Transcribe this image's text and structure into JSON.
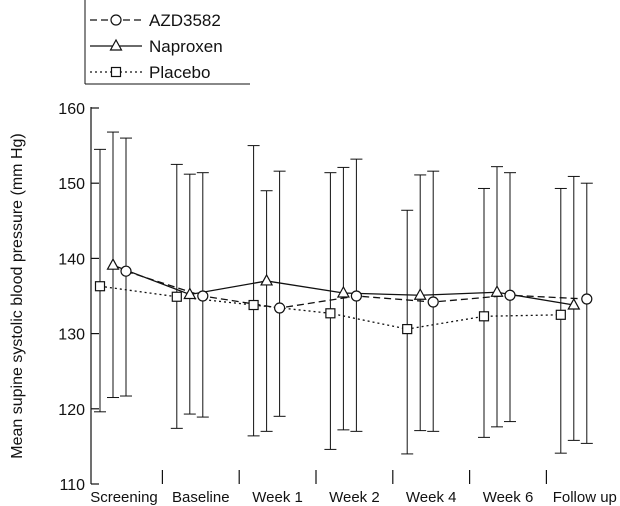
{
  "chart_data": {
    "type": "line",
    "categories": [
      "Screening",
      "Baseline",
      "Week 1",
      "Week 2",
      "Week 4",
      "Week 6",
      "Follow up"
    ],
    "ylabel": "Mean supine systolic blood pressure (mm Hg)",
    "xlabel": "",
    "ylim": [
      110,
      160
    ],
    "yticks": [
      110,
      120,
      130,
      140,
      150,
      160
    ],
    "grid": false,
    "legend_position": "top-left",
    "series": [
      {
        "name": "AZD3582",
        "marker": "circle",
        "line_style": "dashed",
        "values": [
          138.3,
          135.0,
          133.4,
          135.0,
          134.2,
          135.1,
          134.6
        ],
        "error_upper": [
          156.0,
          151.4,
          151.6,
          153.2,
          151.6,
          151.4,
          150.0
        ],
        "error_lower": [
          121.7,
          118.9,
          119.0,
          117.0,
          117.0,
          118.3,
          115.4
        ]
      },
      {
        "name": "Naproxen",
        "marker": "triangle",
        "line_style": "solid",
        "values": [
          139.1,
          135.2,
          137.0,
          135.4,
          135.1,
          135.5,
          133.8
        ],
        "error_upper": [
          156.8,
          151.2,
          149.0,
          152.1,
          151.1,
          152.2,
          150.9
        ],
        "error_lower": [
          121.5,
          119.3,
          117.0,
          117.2,
          117.1,
          117.6,
          115.8
        ]
      },
      {
        "name": "Placebo",
        "marker": "square",
        "line_style": "dotted",
        "values": [
          136.3,
          134.9,
          133.8,
          132.7,
          130.6,
          132.3,
          132.5
        ],
        "error_upper": [
          154.5,
          152.5,
          155.0,
          151.4,
          146.4,
          149.3,
          149.3
        ],
        "error_lower": [
          119.6,
          117.4,
          116.4,
          114.6,
          114.0,
          116.2,
          114.1
        ]
      }
    ]
  }
}
